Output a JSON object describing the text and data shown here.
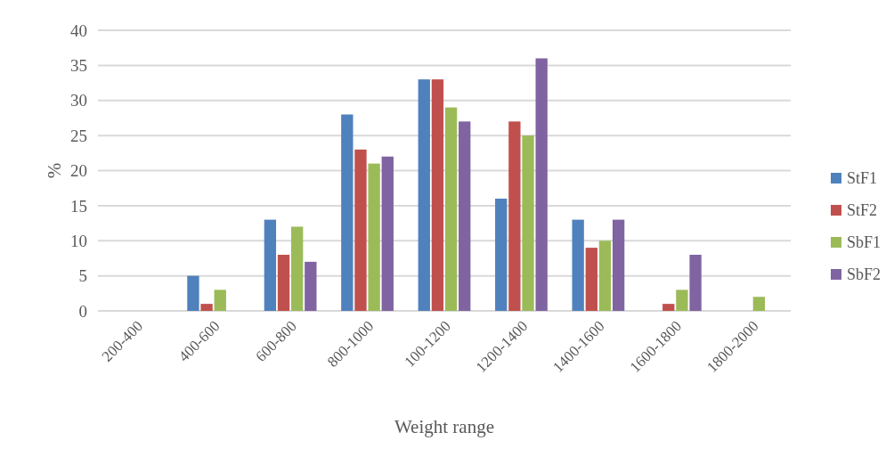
{
  "chart_data": {
    "type": "bar",
    "xlabel": "Weight range",
    "ylabel": "%",
    "categories": [
      "200-400",
      "400-600",
      "600-800",
      "800-1000",
      "100-1200",
      "1200-1400",
      "1400-1600",
      "1600-1800",
      "1800-2000"
    ],
    "series": [
      {
        "name": "StF1",
        "color": "#4f81bd",
        "values": [
          0,
          5,
          13,
          28,
          33,
          16,
          13,
          0,
          0
        ]
      },
      {
        "name": "StF2",
        "color": "#c0504d",
        "values": [
          0,
          1,
          8,
          23,
          33,
          27,
          9,
          1,
          0
        ]
      },
      {
        "name": "SbF1",
        "color": "#9bbb59",
        "values": [
          0,
          3,
          12,
          21,
          29,
          25,
          10,
          3,
          2
        ]
      },
      {
        "name": "SbF2",
        "color": "#8064a2",
        "values": [
          0,
          0,
          7,
          22,
          27,
          36,
          13,
          8,
          0
        ]
      }
    ],
    "ylim": [
      0,
      40
    ],
    "yticks": [
      0,
      5,
      10,
      15,
      20,
      25,
      30,
      35,
      40
    ],
    "grid": "y",
    "legend": "right"
  }
}
